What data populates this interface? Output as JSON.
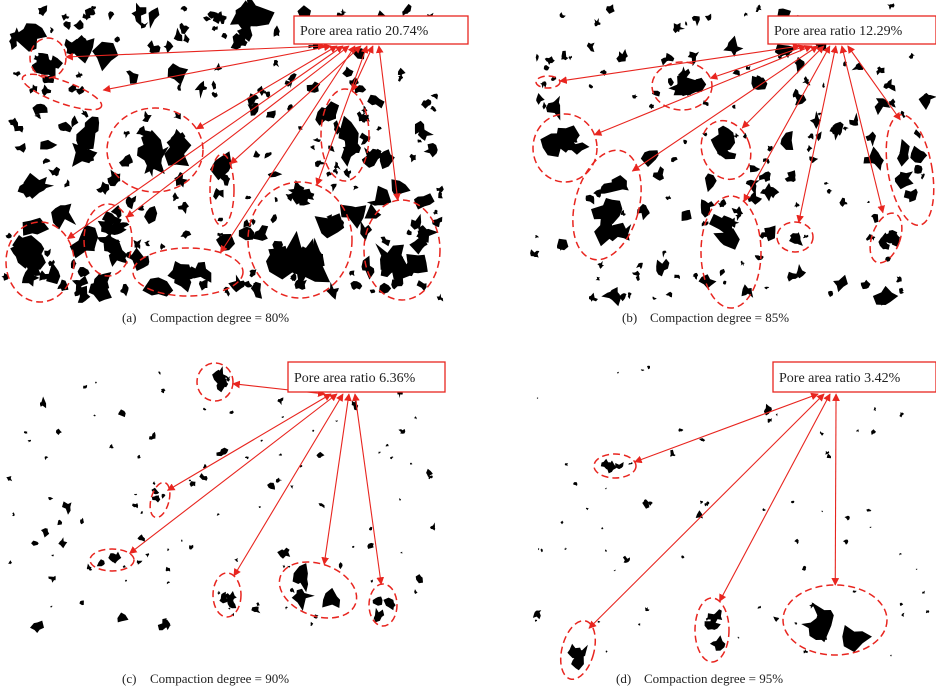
{
  "panels": [
    {
      "label": "(a)",
      "caption": "Compaction degree = 80%",
      "annotation": "Pore area ratio 20.74%"
    },
    {
      "label": "(b)",
      "caption": "Compaction degree = 85%",
      "annotation": "Pore area ratio 12.29%"
    },
    {
      "label": "(c)",
      "caption": "Compaction degree = 90%",
      "annotation": "Pore area ratio 6.36%"
    },
    {
      "label": "(d)",
      "caption": "Compaction degree = 95%",
      "annotation": "Pore area ratio 3.42%"
    }
  ]
}
